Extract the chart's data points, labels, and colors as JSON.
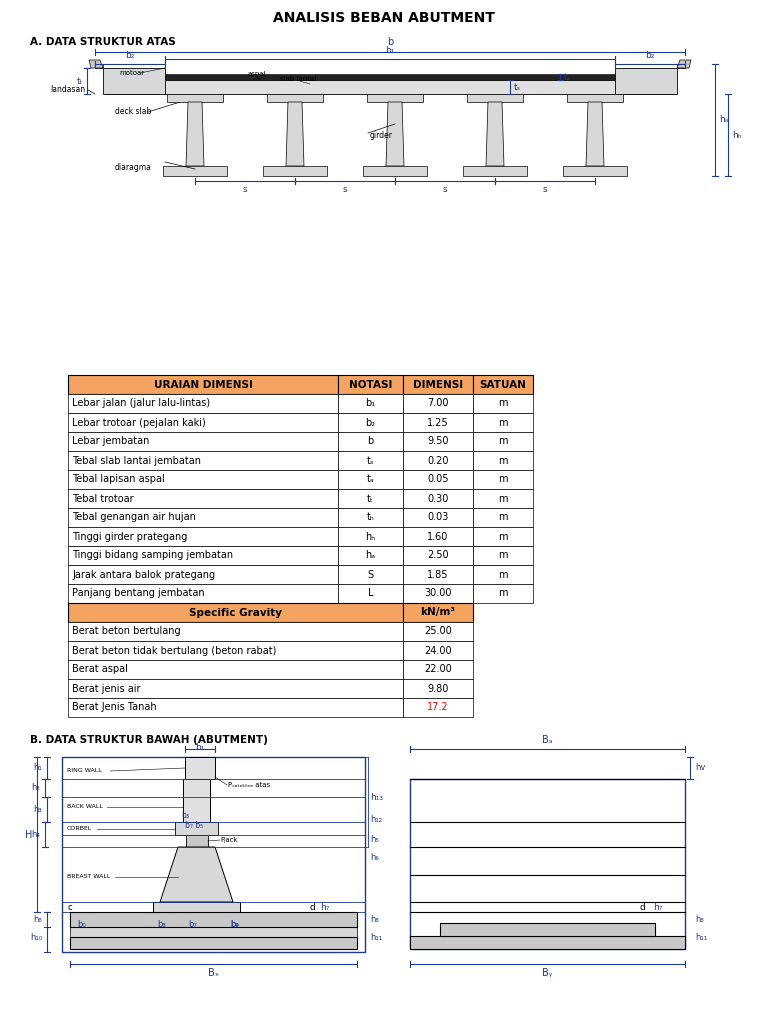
{
  "title": "ANALISIS BEBAN ABUTMENT",
  "section_a": "A. DATA STRUKTUR ATAS",
  "section_b": "B. DATA STRUKTUR BAWAH (ABUTMENT)",
  "table_header": [
    "URAIAN DIMENSI",
    "NOTASI",
    "DIMENSI",
    "SATUAN"
  ],
  "table_rows": [
    [
      "Lebar jalan (jalur lalu-lintas)",
      "b₁",
      "7.00",
      "m"
    ],
    [
      "Lebar trotoar (pejalan kaki)",
      "b₂",
      "1.25",
      "m"
    ],
    [
      "Lebar jembatan",
      "b",
      "9.50",
      "m"
    ],
    [
      "Tebal slab lantai jembatan",
      "tₛ",
      "0.20",
      "m"
    ],
    [
      "Tebal lapisan aspal",
      "tₐ",
      "0.05",
      "m"
    ],
    [
      "Tebal trotoar",
      "tₜ",
      "0.30",
      "m"
    ],
    [
      "Tebal genangan air hujan",
      "tₕ",
      "0.03",
      "m"
    ],
    [
      "Tinggi girder prategang",
      "hₕ",
      "1.60",
      "m"
    ],
    [
      "Tinggi bidang samping jembatan",
      "hₐ",
      "2.50",
      "m"
    ],
    [
      "Jarak antara balok prategang",
      "S",
      "1.85",
      "m"
    ],
    [
      "Panjang bentang jembatan",
      "L",
      "30.00",
      "m"
    ]
  ],
  "specific_gravity_rows": [
    [
      "Berat beton bertulang",
      "25.00"
    ],
    [
      "Berat beton tidak bertulang (beton rabat)",
      "24.00"
    ],
    [
      "Berat aspal",
      "22.00"
    ],
    [
      "Berat jenis air",
      "9.80"
    ],
    [
      "Berat Jenis Tanah",
      "17.2"
    ]
  ],
  "header_color": "#F4A460",
  "blue_color": "#1E3A8A",
  "red_color": "#FF0000",
  "bg_color": "#FFFFFF",
  "black": "#000000",
  "gray1": "#C8C8C8",
  "gray2": "#D8D8D8",
  "gray3": "#E0E0E0",
  "gray4": "#888888"
}
